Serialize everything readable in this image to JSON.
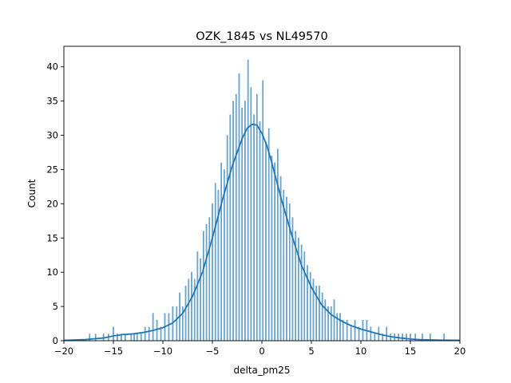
{
  "chart_data": {
    "type": "bar",
    "title": "OZK_1845 vs NL49570",
    "xlabel": "delta_pm25",
    "ylabel": "Count",
    "xlim": [
      -20,
      20
    ],
    "ylim": [
      0,
      43
    ],
    "xticks": [
      -20,
      -15,
      -10,
      -5,
      0,
      5,
      10,
      15,
      20
    ],
    "yticks": [
      0,
      5,
      10,
      15,
      20,
      25,
      30,
      35,
      40
    ],
    "grid": false,
    "legend": "none",
    "bar_color": "#1f77b4",
    "bar_alpha": 0.6,
    "kde_color": "#1f77b4",
    "bin_width": 0.1,
    "histogram": {
      "x": [
        -17.4,
        -16.8,
        -16.0,
        -15.5,
        -15.0,
        -14.6,
        -14.2,
        -13.8,
        -13.2,
        -12.9,
        -12.6,
        -12.2,
        -11.8,
        -11.4,
        -11.0,
        -10.6,
        -10.2,
        -9.8,
        -9.4,
        -9.0,
        -8.6,
        -8.3,
        -8.0,
        -7.7,
        -7.4,
        -7.1,
        -6.8,
        -6.5,
        -6.2,
        -5.9,
        -5.6,
        -5.3,
        -5.0,
        -4.7,
        -4.4,
        -4.1,
        -3.8,
        -3.5,
        -3.2,
        -2.9,
        -2.6,
        -2.3,
        -2.0,
        -1.7,
        -1.4,
        -1.1,
        -0.8,
        -0.5,
        -0.2,
        0.1,
        0.4,
        0.7,
        1.0,
        1.3,
        1.6,
        1.9,
        2.2,
        2.5,
        2.8,
        3.1,
        3.4,
        3.7,
        4.0,
        4.3,
        4.6,
        4.9,
        5.2,
        5.5,
        5.8,
        6.1,
        6.4,
        6.7,
        7.0,
        7.3,
        7.6,
        7.9,
        8.2,
        8.6,
        9.0,
        9.4,
        9.8,
        10.2,
        10.6,
        11.0,
        11.4,
        11.8,
        12.2,
        12.6,
        13.0,
        13.4,
        13.8,
        14.2,
        14.6,
        15.0,
        15.5,
        16.2,
        17.0,
        18.4
      ],
      "counts": [
        1,
        1,
        1,
        1,
        2,
        1,
        1,
        1,
        1,
        1,
        1,
        1,
        2,
        2,
        4,
        3,
        2,
        4,
        4,
        5,
        5,
        7,
        5,
        8,
        9,
        10,
        9,
        13,
        12,
        16,
        17,
        18,
        20,
        23,
        22,
        26,
        25,
        30,
        33,
        35,
        36,
        39,
        34,
        35,
        41,
        37,
        33,
        36,
        32,
        38,
        29,
        31,
        27,
        26,
        28,
        24,
        22,
        21,
        20,
        18,
        16,
        15,
        14,
        13,
        11,
        10,
        9,
        8,
        8,
        7,
        6,
        5,
        5,
        6,
        4,
        4,
        3,
        3,
        2,
        3,
        2,
        3,
        3,
        2,
        1,
        2,
        1,
        2,
        1,
        1,
        1,
        1,
        1,
        1,
        1,
        1,
        1,
        1
      ]
    },
    "kde": {
      "x": [
        -20,
        -18,
        -16,
        -15,
        -14,
        -13,
        -12,
        -11,
        -10,
        -9,
        -8,
        -7,
        -6,
        -5,
        -4,
        -3,
        -2,
        -1.5,
        -1,
        -0.5,
        0,
        0.5,
        1,
        2,
        3,
        4,
        5,
        6,
        7,
        8,
        9,
        10,
        11,
        12,
        13,
        14,
        15,
        16,
        18,
        20
      ],
      "y": [
        0.05,
        0.15,
        0.4,
        0.7,
        0.9,
        1.0,
        1.2,
        1.5,
        1.9,
        2.6,
        4.0,
        6.5,
        10.0,
        15.0,
        20.5,
        25.5,
        29.5,
        31.0,
        31.6,
        31.5,
        30.3,
        28.5,
        26.0,
        20.5,
        15.5,
        11.0,
        7.8,
        5.3,
        3.8,
        2.9,
        2.2,
        1.7,
        1.3,
        0.9,
        0.6,
        0.4,
        0.25,
        0.15,
        0.08,
        0.05
      ]
    }
  }
}
